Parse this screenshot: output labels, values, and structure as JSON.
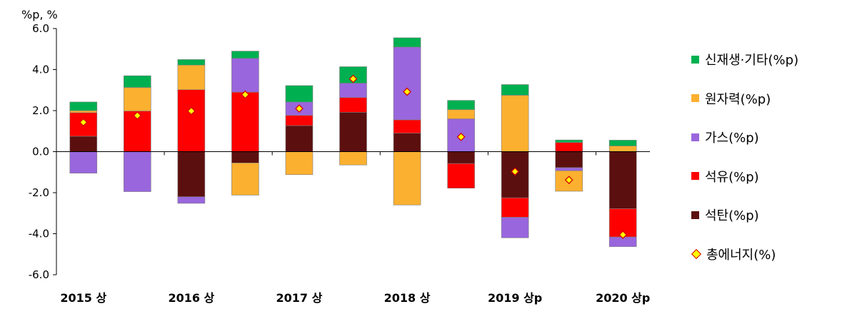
{
  "chart_data": {
    "type": "bar",
    "stacked": true,
    "unit_label": "%p, %",
    "categories": [
      "2015 상",
      "",
      "2016 상",
      "",
      "2017 상",
      "",
      "2018 상",
      "",
      "2019 상p",
      "",
      "2020 상p"
    ],
    "ylim": [
      -6.0,
      6.0
    ],
    "yticks": [
      "6.0",
      "4.0",
      "2.0",
      "0.0",
      "-2.0",
      "-4.0",
      "-6.0"
    ],
    "grid": false,
    "legend_position": "right",
    "series": [
      {
        "name": "석탄(%p)",
        "color": "#5c0f0f",
        "values": [
          0.75,
          0.0,
          -2.2,
          -0.55,
          1.27,
          1.92,
          0.9,
          -0.58,
          -2.25,
          -0.78,
          -2.78
        ]
      },
      {
        "name": "석유(%p)",
        "color": "#ff0000",
        "values": [
          1.15,
          1.98,
          3.02,
          2.9,
          0.5,
          0.72,
          0.65,
          -1.2,
          -0.95,
          0.45,
          -1.38
        ]
      },
      {
        "name": "가스(%p)",
        "color": "#9966dd",
        "values": [
          -1.05,
          -1.95,
          -0.32,
          1.65,
          0.65,
          0.7,
          3.55,
          1.6,
          -1.0,
          -0.15,
          -0.47
        ]
      },
      {
        "name": "원자력(%p)",
        "color": "#fbb030",
        "values": [
          0.1,
          1.15,
          1.2,
          -1.57,
          -1.12,
          -0.65,
          -2.6,
          0.45,
          2.75,
          -1.0,
          0.28
        ]
      },
      {
        "name": "신재생·기타(%p)",
        "color": "#00b050",
        "values": [
          0.42,
          0.57,
          0.27,
          0.35,
          0.8,
          0.8,
          0.45,
          0.45,
          0.52,
          0.12,
          0.28
        ]
      }
    ],
    "total": {
      "name": "총에너지(%)",
      "values": [
        1.43,
        1.76,
        1.98,
        2.78,
        2.1,
        3.55,
        2.92,
        0.72,
        -0.97,
        -1.38,
        -4.05
      ]
    },
    "legend": [
      "신재생·기타(%p)",
      "원자력(%p)",
      "가스(%p)",
      "석유(%p)",
      "석탄(%p)",
      "총에너지(%)"
    ]
  }
}
